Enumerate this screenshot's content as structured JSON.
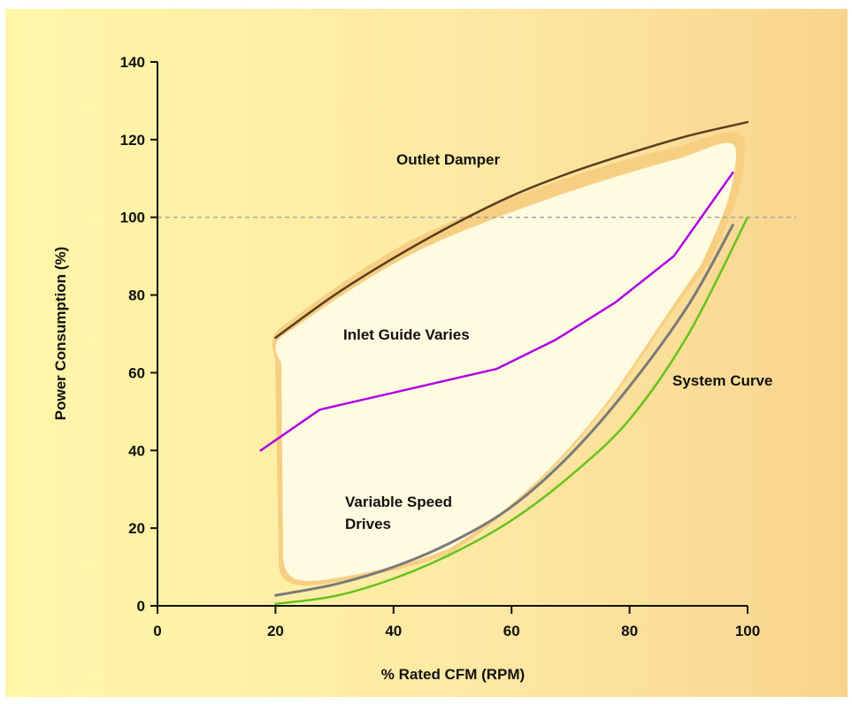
{
  "chart_data": {
    "type": "line",
    "xlabel": "% Rated CFM (RPM)",
    "ylabel": "Power Consumption (%)",
    "xlim": [
      0,
      100
    ],
    "ylim": [
      0,
      140
    ],
    "x_ticks": [
      0,
      20,
      40,
      60,
      80,
      100
    ],
    "y_ticks": [
      0,
      20,
      40,
      60,
      80,
      100,
      120,
      140
    ],
    "reference_line": {
      "y": 100,
      "style": "dashed"
    },
    "grid": false,
    "annotations": [
      {
        "text": "Outlet Damper"
      },
      {
        "text": "Inlet Guide Varies"
      },
      {
        "text": "Variable Speed"
      },
      {
        "text": "Drives"
      },
      {
        "text": "System Curve"
      }
    ],
    "series": [
      {
        "label_ref": "Outlet Damper",
        "color": "#5a3d1e",
        "x": [
          20,
          30,
          40,
          50,
          60,
          70,
          80,
          90,
          100
        ],
        "y": [
          69,
          80,
          89.5,
          98,
          105.5,
          111.5,
          116.5,
          121,
          124.5
        ]
      },
      {
        "label_ref": "Inlet Guide Varies",
        "color": "#b000e8",
        "x": [
          17.5,
          27.5,
          37.5,
          47.5,
          57.5,
          67.5,
          77.5,
          87.5,
          97.5
        ],
        "y": [
          40,
          50.5,
          54,
          57.5,
          61,
          68.5,
          78,
          90,
          111.5
        ]
      },
      {
        "label_ref": "Variable Speed Drives",
        "color": "#7a7a7a",
        "x": [
          20,
          30,
          40,
          50,
          60,
          70,
          80,
          90,
          97.5
        ],
        "y": [
          2.7,
          5.5,
          10,
          16.5,
          25.5,
          39,
          56.5,
          77.5,
          98
        ]
      },
      {
        "label_ref": "System Curve",
        "color": "#66c21a",
        "x": [
          20,
          30,
          40,
          50,
          60,
          70,
          80,
          90,
          100
        ],
        "y": [
          0.5,
          2.5,
          7,
          13.5,
          22,
          33.5,
          48,
          70,
          100
        ]
      }
    ],
    "colors": {
      "background_left": "#fff6a8",
      "background_right": "#f9d48e",
      "savings_region": "#fffbe0",
      "region_border": "#f7cf82",
      "axis": "#111111",
      "reference_line": "#999999"
    }
  }
}
